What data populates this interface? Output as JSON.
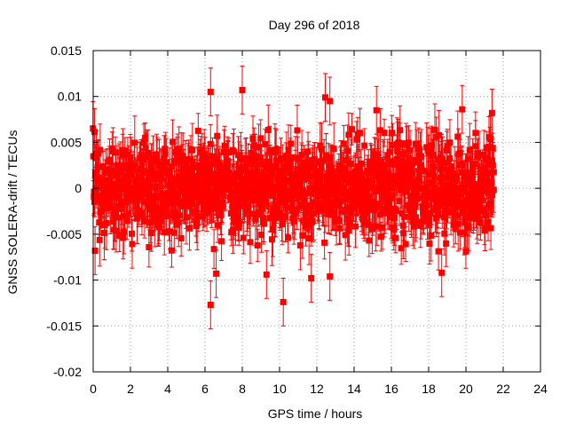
{
  "chart_data": {
    "type": "scatter",
    "title": "Day 296 of 2018",
    "xlabel": "GPS time / hours",
    "ylabel": "GNSS SOLERA-drift / TECUs",
    "xlim": [
      0,
      24
    ],
    "ylim": [
      -0.02,
      0.015
    ],
    "xticks": [
      "0",
      "2",
      "4",
      "6",
      "8",
      "10",
      "12",
      "14",
      "16",
      "18",
      "20",
      "22",
      "24"
    ],
    "yticks": [
      "0.015",
      "0.01",
      "0.005",
      "0",
      "-0.005",
      "-0.01",
      "-0.015",
      "-0.02"
    ],
    "grid": true,
    "legend": "none",
    "series_color": "#ff0000",
    "point_style": "filled-square-with-error-bars",
    "x_range_of_points": [
      0.0,
      21.5
    ],
    "y_envelope_typical": [
      -0.007,
      0.007
    ],
    "typical_error_bar": 0.002,
    "outlier_points": [
      {
        "x": 6.3,
        "y": 0.0105
      },
      {
        "x": 8.0,
        "y": 0.0107
      },
      {
        "x": 12.45,
        "y": 0.0099
      },
      {
        "x": 12.7,
        "y": 0.0095
      },
      {
        "x": 19.8,
        "y": 0.0086
      },
      {
        "x": 15.2,
        "y": 0.0085
      },
      {
        "x": 6.3,
        "y": -0.0127
      },
      {
        "x": 10.2,
        "y": -0.0124
      },
      {
        "x": 9.3,
        "y": -0.0094
      },
      {
        "x": 6.6,
        "y": -0.0093
      },
      {
        "x": 12.7,
        "y": -0.0096
      },
      {
        "x": 11.7,
        "y": -0.0098
      },
      {
        "x": 18.7,
        "y": -0.0092
      },
      {
        "x": 0.1,
        "y": -0.0068
      },
      {
        "x": 21.4,
        "y": 0.0082
      }
    ]
  }
}
